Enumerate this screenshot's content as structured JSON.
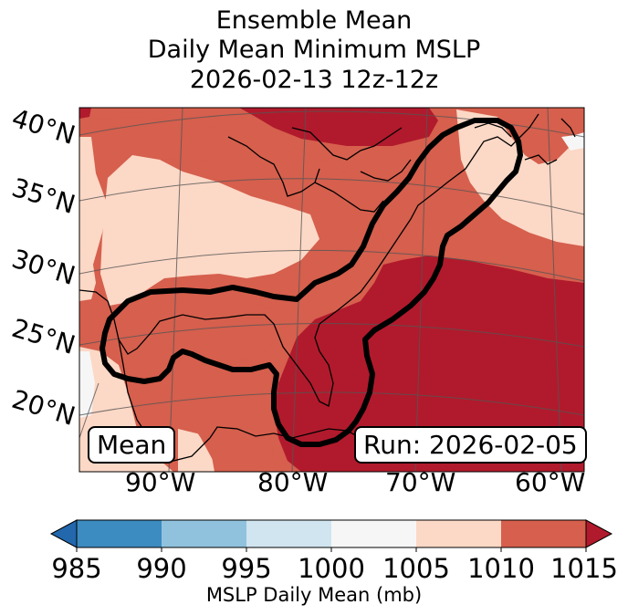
{
  "title": {
    "line1": "Ensemble Mean",
    "line2": "Daily Mean Minimum MSLP",
    "line3": "2026-02-13 12z-12z"
  },
  "map": {
    "lat_labels": [
      "40°N",
      "35°N",
      "30°N",
      "25°N",
      "20°N"
    ],
    "lon_labels": [
      "90°W",
      "80°W",
      "70°W",
      "60°W"
    ],
    "mean_label": "Mean",
    "run_label": "Run: 2026-02-05"
  },
  "colorbar": {
    "label": "MSLP Daily Mean (mb)",
    "ticks": [
      "985",
      "990",
      "995",
      "1000",
      "1005",
      "1010",
      "1015"
    ],
    "colors": [
      "#3c8bc1",
      "#90c2de",
      "#d0e5f0",
      "#f6f6f6",
      "#fcd8c6",
      "#d65f4d",
      "#b11a2c"
    ],
    "extend_low_color": "#2367ac",
    "extend_high_color": "#b11a2c"
  }
}
